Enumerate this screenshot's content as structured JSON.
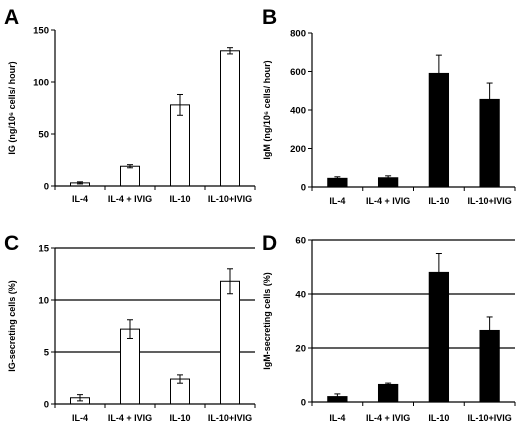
{
  "chart_data": [
    {
      "panel": "A",
      "type": "bar",
      "ylabel": "IG (ng/10⁶ cells/ hour)",
      "ylim": [
        0,
        150
      ],
      "yticks": [
        0,
        50,
        100,
        150
      ],
      "grid": false,
      "bar_color": "#ffffff",
      "categories": [
        "IL-4",
        "IL-4 + IVIG",
        "IL-10",
        "IL-10+IVIG"
      ],
      "values": [
        3,
        19,
        78,
        130
      ],
      "errors": [
        1,
        1.5,
        10,
        3
      ]
    },
    {
      "panel": "B",
      "type": "bar",
      "ylabel": "IgM (ng/10⁶ cells/ hour)",
      "ylim": [
        0,
        800
      ],
      "yticks": [
        0,
        200,
        400,
        600,
        800
      ],
      "grid": false,
      "bar_color": "#000000",
      "categories": [
        "IL-4",
        "IL-4 + IVIG",
        "IL-10",
        "IL-10+IVIG"
      ],
      "values": [
        45,
        48,
        590,
        455
      ],
      "errors": [
        8,
        10,
        95,
        85
      ]
    },
    {
      "panel": "C",
      "type": "bar",
      "ylabel": "IG-secreting cells (%)",
      "ylim": [
        0,
        15
      ],
      "yticks": [
        0,
        5,
        10,
        15
      ],
      "grid": true,
      "bar_color": "#ffffff",
      "categories": [
        "IL-4",
        "IL-4 + IVIG",
        "IL-10",
        "IL-10+IVIG"
      ],
      "values": [
        0.6,
        7.2,
        2.4,
        11.8
      ],
      "errors": [
        0.3,
        0.9,
        0.4,
        1.2
      ]
    },
    {
      "panel": "D",
      "type": "bar",
      "ylabel": "IgM-secreting cells (%)",
      "ylim": [
        0,
        60
      ],
      "yticks": [
        0,
        20,
        40,
        60
      ],
      "grid": true,
      "bar_color": "#000000",
      "categories": [
        "IL-4",
        "IL-4 + IVIG",
        "IL-10",
        "IL-10+IVIG"
      ],
      "values": [
        2,
        6.5,
        48,
        26.5
      ],
      "errors": [
        1,
        0.5,
        7,
        5
      ]
    }
  ]
}
